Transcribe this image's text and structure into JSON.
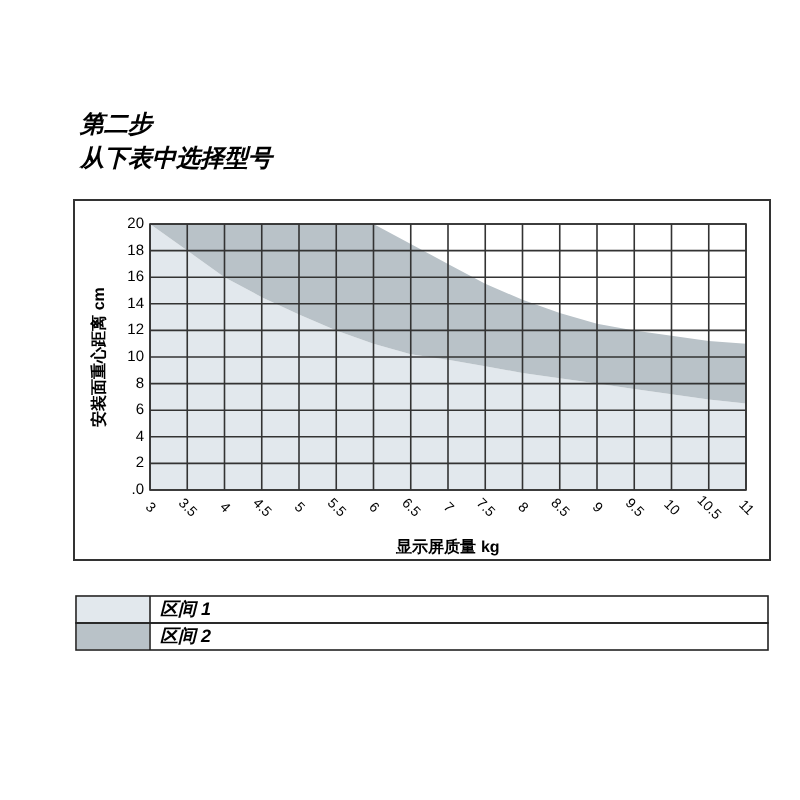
{
  "chart_data": {
    "type": "area",
    "title": "第二步",
    "subtitle": "从下表中选择型号",
    "xlabel": "显示屏质量 kg",
    "ylabel": "安装面重心距离 cm",
    "x": [
      3,
      3.25,
      3.5,
      4,
      4.5,
      5,
      5.5,
      6,
      6.5,
      7,
      7.5,
      8,
      8.5,
      9,
      9.5,
      10,
      10.5,
      11
    ],
    "stacked": true,
    "series": [
      {
        "name": "区间 1",
        "color": "#e2e8ed",
        "values": [
          20,
          19,
          18,
          16,
          14.5,
          13.2,
          12,
          11,
          10.2,
          9.8,
          9.3,
          8.8,
          8.4,
          8,
          7.6,
          7.2,
          6.8,
          6.5
        ]
      },
      {
        "name": "区间 2",
        "color": "#b9c2c8",
        "values": [
          0,
          1,
          2,
          4,
          5.5,
          6.8,
          8,
          9,
          8.3,
          7.2,
          6.2,
          5.5,
          4.9,
          4.5,
          4.4,
          4.4,
          4.4,
          4.5
        ]
      }
    ],
    "xlim": [
      3,
      11
    ],
    "xticks": [
      3,
      3.5,
      4,
      4.5,
      5,
      5.5,
      6,
      6.5,
      7,
      7.5,
      8,
      8.5,
      9,
      9.5,
      10,
      10.5,
      11
    ],
    "ylim": [
      0,
      20
    ],
    "yticks": [
      {
        "value": 0,
        "label": ".0"
      },
      2,
      4,
      6,
      8,
      10,
      12,
      14,
      16,
      18,
      20
    ],
    "grid": true,
    "legend": "bottom"
  }
}
